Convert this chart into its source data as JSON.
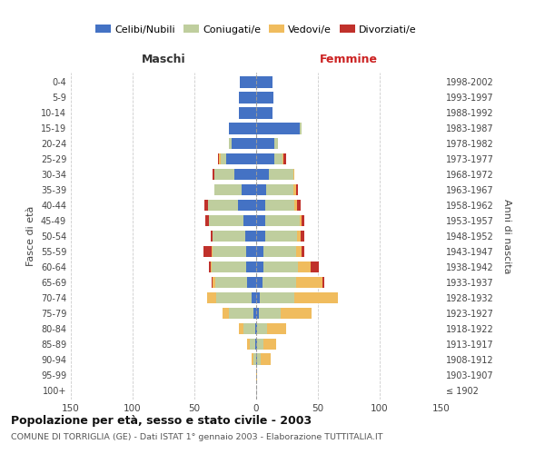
{
  "age_groups": [
    "100+",
    "95-99",
    "90-94",
    "85-89",
    "80-84",
    "75-79",
    "70-74",
    "65-69",
    "60-64",
    "55-59",
    "50-54",
    "45-49",
    "40-44",
    "35-39",
    "30-34",
    "25-29",
    "20-24",
    "15-19",
    "10-14",
    "5-9",
    "0-4"
  ],
  "birth_years": [
    "≤ 1902",
    "1903-1907",
    "1908-1912",
    "1913-1917",
    "1918-1922",
    "1923-1927",
    "1928-1932",
    "1933-1937",
    "1938-1942",
    "1943-1947",
    "1948-1952",
    "1953-1957",
    "1958-1962",
    "1963-1967",
    "1968-1972",
    "1973-1977",
    "1978-1982",
    "1983-1987",
    "1988-1992",
    "1993-1997",
    "1998-2002"
  ],
  "males": {
    "celibi": [
      0,
      0,
      0,
      1,
      1,
      2,
      4,
      7,
      8,
      8,
      9,
      10,
      15,
      12,
      18,
      24,
      20,
      22,
      14,
      14,
      13
    ],
    "coniugati": [
      0,
      0,
      2,
      4,
      9,
      20,
      28,
      26,
      28,
      27,
      26,
      28,
      24,
      22,
      16,
      5,
      2,
      0,
      0,
      0,
      0
    ],
    "vedovi": [
      0,
      0,
      2,
      2,
      4,
      5,
      8,
      2,
      1,
      1,
      0,
      0,
      0,
      0,
      0,
      1,
      0,
      0,
      0,
      0,
      0
    ],
    "divorziati": [
      0,
      0,
      0,
      0,
      0,
      0,
      0,
      1,
      1,
      7,
      2,
      3,
      3,
      0,
      1,
      1,
      0,
      0,
      0,
      0,
      0
    ]
  },
  "females": {
    "nubili": [
      0,
      0,
      1,
      1,
      1,
      2,
      3,
      5,
      6,
      6,
      7,
      7,
      7,
      8,
      10,
      15,
      15,
      35,
      13,
      14,
      13
    ],
    "coniugate": [
      0,
      0,
      3,
      5,
      8,
      18,
      28,
      27,
      28,
      26,
      26,
      28,
      24,
      22,
      20,
      6,
      3,
      2,
      0,
      0,
      0
    ],
    "vedove": [
      0,
      1,
      8,
      10,
      15,
      25,
      35,
      22,
      10,
      5,
      3,
      2,
      2,
      2,
      1,
      1,
      0,
      0,
      0,
      0,
      0
    ],
    "divorziate": [
      0,
      0,
      0,
      0,
      0,
      0,
      0,
      1,
      7,
      2,
      3,
      2,
      3,
      2,
      0,
      2,
      0,
      0,
      0,
      0,
      0
    ]
  },
  "colors": {
    "celibi": "#4472C4",
    "coniugati": "#BFCE9E",
    "vedovi": "#F0BC5E",
    "divorziati": "#C0312B"
  },
  "legend_labels": [
    "Celibi/Nubili",
    "Coniugati/e",
    "Vedovi/e",
    "Divorziati/e"
  ],
  "title": "Popolazione per età, sesso e stato civile - 2003",
  "subtitle": "COMUNE DI TORRIGLIA (GE) - Dati ISTAT 1° gennaio 2003 - Elaborazione TUTTITALIA.IT",
  "label_maschi": "Maschi",
  "label_femmine": "Femmine",
  "ylabel_left": "Fasce di età",
  "ylabel_right": "Anni di nascita",
  "xlim": 150,
  "xticks": [
    -150,
    -100,
    -50,
    0,
    50,
    100,
    150
  ],
  "xtick_labels": [
    "150",
    "100",
    "50",
    "0",
    "50",
    "100",
    "150"
  ],
  "bg_color": "#ffffff",
  "grid_color": "#cccccc",
  "bar_height": 0.75
}
